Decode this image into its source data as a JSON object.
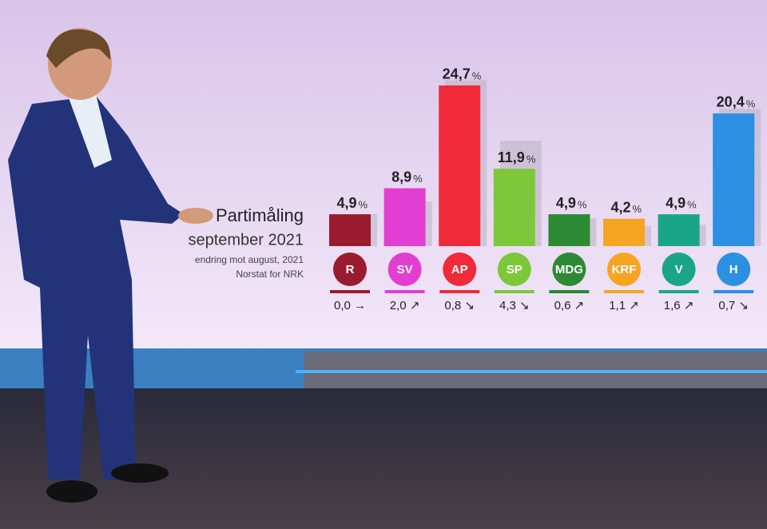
{
  "chart_data": {
    "type": "bar",
    "title": "Partimåling",
    "subtitle": "september 2021",
    "notes": [
      "endring mot august, 2021",
      "Norstat for NRK"
    ],
    "unit": "%",
    "categories": [
      "R",
      "SV",
      "AP",
      "SP",
      "MDG",
      "KRF",
      "V",
      "H"
    ],
    "values": [
      4.9,
      8.9,
      24.7,
      11.9,
      4.9,
      4.2,
      4.9,
      20.4
    ],
    "value_labels": [
      "4,9",
      "8,9",
      "24,7",
      "11,9",
      "4,9",
      "4,2",
      "4,9",
      "20,4"
    ],
    "previous_values": [
      4.9,
      6.9,
      25.5,
      16.2,
      4.3,
      3.1,
      3.3,
      21.1
    ],
    "changes": [
      0.0,
      2.0,
      0.8,
      4.3,
      0.6,
      1.1,
      1.6,
      0.7
    ],
    "change_labels": [
      "0,0 →",
      "2,0 ↗",
      "0,8 ↘",
      "4,3 ↘",
      "0,6 ↗",
      "1,1 ↗",
      "1,6 ↗",
      "0,7 ↘"
    ],
    "colors": [
      "#9b1b2e",
      "#e23fd2",
      "#ef2b3a",
      "#7cc83a",
      "#2d8a34",
      "#f5a522",
      "#1aa58a",
      "#2b8fe2"
    ]
  }
}
